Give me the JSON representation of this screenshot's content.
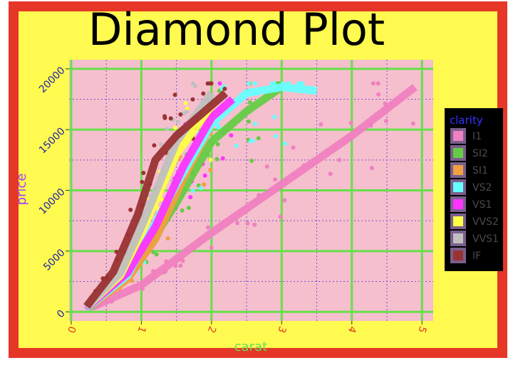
{
  "chart_data": {
    "type": "scatter",
    "title": "Diamond Plot",
    "xlabel": "carat",
    "ylabel": "price",
    "xlim": [
      -0.03,
      5.16
    ],
    "ylim": [
      -750,
      20750
    ],
    "x_ticks": [
      0,
      1,
      2,
      3,
      4,
      5
    ],
    "x_tick_labels": [
      "0",
      "1",
      "2",
      "3",
      "4",
      "5"
    ],
    "y_ticks": [
      0,
      5000,
      10000,
      15000,
      20000
    ],
    "y_tick_labels": [
      "0",
      "5000",
      "10000",
      "15000",
      "20000"
    ],
    "grid": true,
    "legend": {
      "title": "clarity",
      "position": "right"
    },
    "series": [
      {
        "name": "I1",
        "color": "#f080c0",
        "trend": [
          [
            0.3,
            400
          ],
          [
            1.0,
            2200
          ],
          [
            2.0,
            6500
          ],
          [
            3.0,
            10500
          ],
          [
            4.0,
            14500
          ],
          [
            4.9,
            18500
          ]
        ]
      },
      {
        "name": "SI2",
        "color": "#66cc44",
        "trend": [
          [
            0.25,
            300
          ],
          [
            1.0,
            4400
          ],
          [
            1.5,
            9000
          ],
          [
            2.0,
            14000
          ],
          [
            2.5,
            16500
          ],
          [
            3.0,
            18500
          ]
        ]
      },
      {
        "name": "SI1",
        "color": "#f0a040",
        "trend": [
          [
            0.22,
            300
          ],
          [
            0.8,
            2700
          ],
          [
            1.2,
            6000
          ],
          [
            1.6,
            11000
          ],
          [
            2.0,
            15500
          ]
        ]
      },
      {
        "name": "VS2",
        "color": "#66ffff",
        "trend": [
          [
            0.22,
            300
          ],
          [
            0.8,
            3000
          ],
          [
            1.5,
            10500
          ],
          [
            2.0,
            15500
          ],
          [
            2.5,
            18000
          ],
          [
            3.0,
            18500
          ],
          [
            3.5,
            18200
          ]
        ]
      },
      {
        "name": "VS1",
        "color": "#ff33ff",
        "trend": [
          [
            0.22,
            350
          ],
          [
            0.8,
            3200
          ],
          [
            1.2,
            7000
          ],
          [
            1.6,
            12000
          ],
          [
            2.0,
            16000
          ],
          [
            2.3,
            17500
          ]
        ]
      },
      {
        "name": "VVS2",
        "color": "#ffff44",
        "trend": [
          [
            0.22,
            400
          ],
          [
            0.7,
            3000
          ],
          [
            1.0,
            6500
          ],
          [
            1.5,
            13000
          ],
          [
            2.0,
            17000
          ]
        ]
      },
      {
        "name": "VVS1",
        "color": "#c0c0c0",
        "trend": [
          [
            0.22,
            400
          ],
          [
            0.7,
            3200
          ],
          [
            1.0,
            7000
          ],
          [
            1.5,
            14000
          ],
          [
            2.0,
            18000
          ]
        ]
      },
      {
        "name": "IF",
        "color": "#993333",
        "trend": [
          [
            0.22,
            450
          ],
          [
            0.6,
            3300
          ],
          [
            0.95,
            8000
          ],
          [
            1.2,
            12500
          ],
          [
            1.5,
            14500
          ],
          [
            2.0,
            17000
          ],
          [
            2.2,
            18000
          ]
        ]
      }
    ]
  }
}
